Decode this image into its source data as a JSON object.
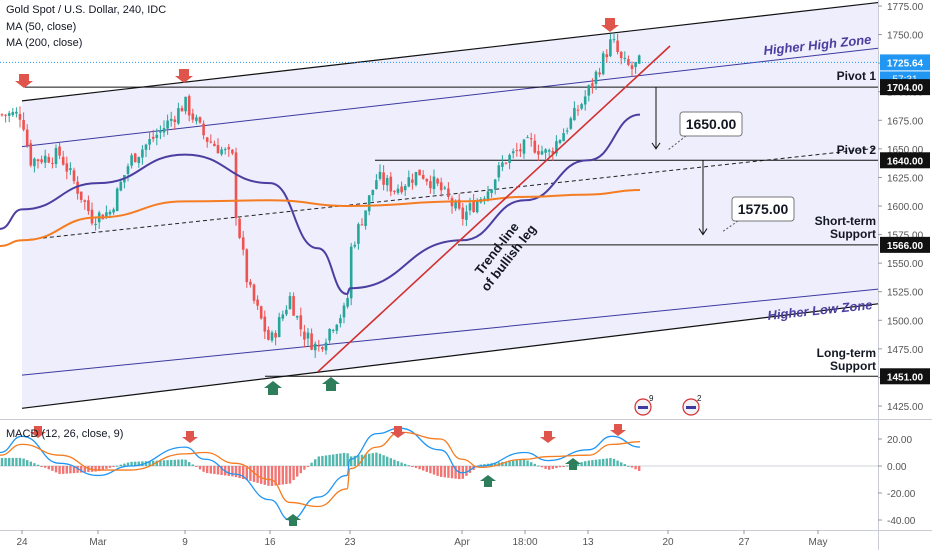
{
  "header": {
    "title": "Gold Spot / U.S. Dollar, 240, IDC",
    "ma50": "MA (50, close)",
    "ma200": "MA (200, close)"
  },
  "current_price": "1725.64",
  "countdown": "57:31",
  "indicator_label": "MACD (12, 26, close, 9)",
  "event_counts": [
    "9",
    "2"
  ],
  "colors": {
    "up_candle": "#26a69a",
    "down_candle": "#ef5350",
    "ma50": "#4a3ea0",
    "ma200": "#f57c20",
    "trendline": "#d32f2f",
    "channel_fill": "#e8e8fb",
    "arrow_red": "#e0554b",
    "arrow_green": "#2e7d5b"
  },
  "annotations": {
    "higher_high_zone": "Higher High Zone",
    "higher_low_zone": "Higher Low Zone",
    "pivot1": "Pivot 1",
    "pivot2": "Pivot 2",
    "short_term_1": "Short-term",
    "short_term_2": "Support",
    "long_term_1": "Long-term",
    "long_term_2": "Support",
    "trend_line_1": "Trend-line",
    "trend_line_2": "of bullish leg",
    "target1": "1650.00",
    "target2": "1575.00"
  },
  "chart_data": [
    {
      "type": "candlestick",
      "instrument": "Gold Spot / U.S. Dollar",
      "timeframe": "240",
      "ylim": [
        1410,
        1780
      ],
      "y_ticks": [
        1425,
        1450,
        1475,
        1500,
        1525,
        1550,
        1575,
        1600,
        1625,
        1650,
        1675,
        1700,
        1725,
        1750,
        1775
      ],
      "x_ticks": [
        "24",
        "Mar",
        "9",
        "16",
        "23",
        "Apr",
        "18:00",
        "13",
        "20",
        "27",
        "May"
      ],
      "price_labels": [
        "1725.64",
        "1704.00",
        "1640.00",
        "1566.00",
        "1451.00"
      ],
      "levels": [
        {
          "name": "Pivot 1",
          "value": 1704
        },
        {
          "name": "Pivot 2",
          "value": 1640
        },
        {
          "name": "Short-term Support",
          "value": 1566
        },
        {
          "name": "Long-term Support",
          "value": 1451
        }
      ],
      "close_path": [
        [
          "24",
          1680
        ],
        [
          "Feb 25",
          1640
        ],
        [
          "Feb 27",
          1645
        ],
        [
          "Feb 28",
          1590
        ],
        [
          "Mar 2",
          1595
        ],
        [
          "Mar 4",
          1640
        ],
        [
          "Mar 6",
          1665
        ],
        [
          "9",
          1690
        ],
        [
          "Mar 11",
          1660
        ],
        [
          "Mar 13",
          1640
        ],
        [
          "Mar 13",
          1600
        ],
        [
          "Mar 14",
          1530
        ],
        [
          "16",
          1480
        ],
        [
          "Mar 17",
          1520
        ],
        [
          "Mar 18",
          1490
        ],
        [
          "Mar 19",
          1475
        ],
        [
          "Mar 20",
          1500
        ],
        [
          "Mar 21",
          1510
        ],
        [
          "23",
          1560
        ],
        [
          "Mar 24",
          1625
        ],
        [
          "Mar 25",
          1615
        ],
        [
          "Mar 27",
          1630
        ],
        [
          "Mar 29",
          1615
        ],
        [
          "Apr",
          1590
        ],
        [
          "Apr 2",
          1615
        ],
        [
          "Apr 5",
          1640
        ],
        [
          "Apr 7",
          1655
        ],
        [
          "Apr 9",
          1645
        ],
        [
          "Apr 11",
          1680
        ],
        [
          "13",
          1700
        ],
        [
          "Apr 14",
          1745
        ],
        [
          "Apr 15",
          1725
        ],
        [
          "Apr 16",
          1720
        ],
        [
          "Apr 17",
          1725.64
        ]
      ],
      "series": [
        {
          "name": "MA (50, close)",
          "values": [
            [
              "24",
              1597
            ],
            [
              "Mar",
              1620
            ],
            [
              "9",
              1645
            ],
            [
              "16",
              1620
            ],
            [
              "Mar 19",
              1563
            ],
            [
              "Mar 21",
              1523
            ],
            [
              "23",
              1528
            ],
            [
              "Apr",
              1570
            ],
            [
              "18:00",
              1605
            ],
            [
              "13",
              1640
            ],
            [
              "Apr 17",
              1680
            ]
          ]
        },
        {
          "name": "MA (200, close)",
          "values": [
            [
              "24",
              1570
            ],
            [
              "Mar",
              1590
            ],
            [
              "9",
              1604
            ],
            [
              "16",
              1605
            ],
            [
              "23",
              1600
            ],
            [
              "Apr",
              1604
            ],
            [
              "18:00",
              1608
            ],
            [
              "13",
              1610
            ],
            [
              "Apr 17",
              1614
            ]
          ]
        }
      ],
      "channel": {
        "upper_line": [
          [
            "24",
            1692
          ],
          [
            "May",
            1772
          ]
        ],
        "lower_line": [
          [
            "24",
            1423
          ],
          [
            "May",
            1508
          ]
        ],
        "higher_high_zone_line": [
          [
            "24",
            1652
          ],
          [
            "May",
            1732
          ]
        ],
        "higher_low_zone_line": [
          [
            "24",
            1452
          ],
          [
            "May",
            1522
          ]
        ],
        "mid_dashed": [
          [
            "24",
            1570
          ],
          [
            "May",
            1645
          ]
        ]
      },
      "trendline": [
        [
          "Mar 19",
          1455
        ],
        [
          "Apr 17",
          1735
        ]
      ],
      "projections": [
        {
          "from": 1704,
          "to": 1650,
          "label": "1650.00"
        },
        {
          "from": 1640,
          "to": 1575,
          "label": "1575.00"
        }
      ],
      "markers": {
        "sell_arrows": [
          "24",
          "9",
          "13"
        ],
        "buy_arrows": [
          "16",
          "Mar 21"
        ]
      }
    },
    {
      "type": "macd",
      "title": "MACD (12, 26, close, 9)",
      "ylim": [
        -42,
        30
      ],
      "y_ticks": [
        20,
        0,
        -20,
        -40
      ],
      "y_tick_labels": [
        "20.00",
        "0.00",
        "-20.00",
        "-40.00"
      ],
      "macd_line": [
        [
          "24",
          22
        ],
        [
          "Feb 27",
          2
        ],
        [
          "Mar",
          -7
        ],
        [
          "Mar 4",
          0
        ],
        [
          "9",
          14
        ],
        [
          "Mar 11",
          5
        ],
        [
          "Mar 13",
          -6
        ],
        [
          "16",
          -25
        ],
        [
          "Mar 17",
          -40
        ],
        [
          "Mar 19",
          -23
        ],
        [
          "Mar 21",
          -7
        ],
        [
          "23",
          5
        ],
        [
          "Mar 24",
          24
        ],
        [
          "Mar 26",
          28
        ],
        [
          "Mar 29",
          12
        ],
        [
          "Apr",
          -5
        ],
        [
          "Apr 3",
          0
        ],
        [
          "18:00",
          10
        ],
        [
          "Apr 9",
          4
        ],
        [
          "13",
          12
        ],
        [
          "Apr 14",
          22
        ],
        [
          "Apr 17",
          14
        ]
      ],
      "signal_line": [
        [
          "24",
          16
        ],
        [
          "Feb 27",
          8
        ],
        [
          "Mar",
          -3
        ],
        [
          "Mar 4",
          -3
        ],
        [
          "9",
          9
        ],
        [
          "Mar 11",
          10
        ],
        [
          "Mar 13",
          2
        ],
        [
          "16",
          -10
        ],
        [
          "Mar 17",
          -27
        ],
        [
          "Mar 19",
          -30
        ],
        [
          "Mar 21",
          -17
        ],
        [
          "23",
          -2
        ],
        [
          "Mar 24",
          14
        ],
        [
          "Mar 26",
          25
        ],
        [
          "Mar 29",
          20
        ],
        [
          "Apr",
          5
        ],
        [
          "Apr 3",
          -1
        ],
        [
          "18:00",
          5
        ],
        [
          "Apr 9",
          7
        ],
        [
          "13",
          8
        ],
        [
          "Apr 14",
          16
        ],
        [
          "Apr 17",
          18
        ]
      ],
      "markers": {
        "sell_arrows": [
          "24",
          "9",
          "Mar 26",
          "Apr 9",
          "Apr 14"
        ],
        "buy_arrows": [
          "Mar 17",
          "Apr 2",
          "13"
        ]
      }
    }
  ]
}
